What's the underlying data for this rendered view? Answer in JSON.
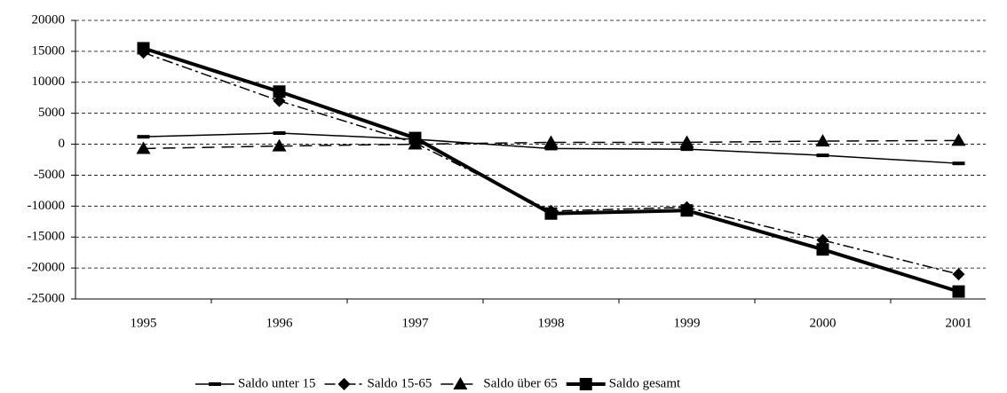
{
  "chart_data": {
    "type": "line",
    "categories": [
      "1995",
      "1996",
      "1997",
      "1998",
      "1999",
      "2000",
      "2001"
    ],
    "series": [
      {
        "name": "Saldo unter 15",
        "color": "#000000",
        "marker": "dash",
        "line_style": "solid",
        "values": [
          1200,
          1800,
          800,
          -700,
          -800,
          -1800,
          -3100
        ]
      },
      {
        "name": "Saldo 15-65",
        "color": "#000000",
        "marker": "diamond",
        "line_style": "dashdot",
        "values": [
          14800,
          7000,
          200,
          -10800,
          -10200,
          -15500,
          -21000
        ]
      },
      {
        "name": "Saldo über 65",
        "color": "#000000",
        "marker": "triangle",
        "line_style": "dashed",
        "values": [
          -700,
          -300,
          0,
          300,
          300,
          500,
          600
        ]
      },
      {
        "name": "Saldo gesamt",
        "color": "#000000",
        "marker": "square",
        "line_style": "bold",
        "values": [
          15500,
          8500,
          1000,
          -11200,
          -10700,
          -17000,
          -23800
        ]
      }
    ],
    "ylim": [
      -25000,
      20000
    ],
    "yticks": [
      -25000,
      -20000,
      -15000,
      -10000,
      -5000,
      0,
      5000,
      10000,
      15000,
      20000
    ],
    "grid": true,
    "legend": "bottom"
  }
}
